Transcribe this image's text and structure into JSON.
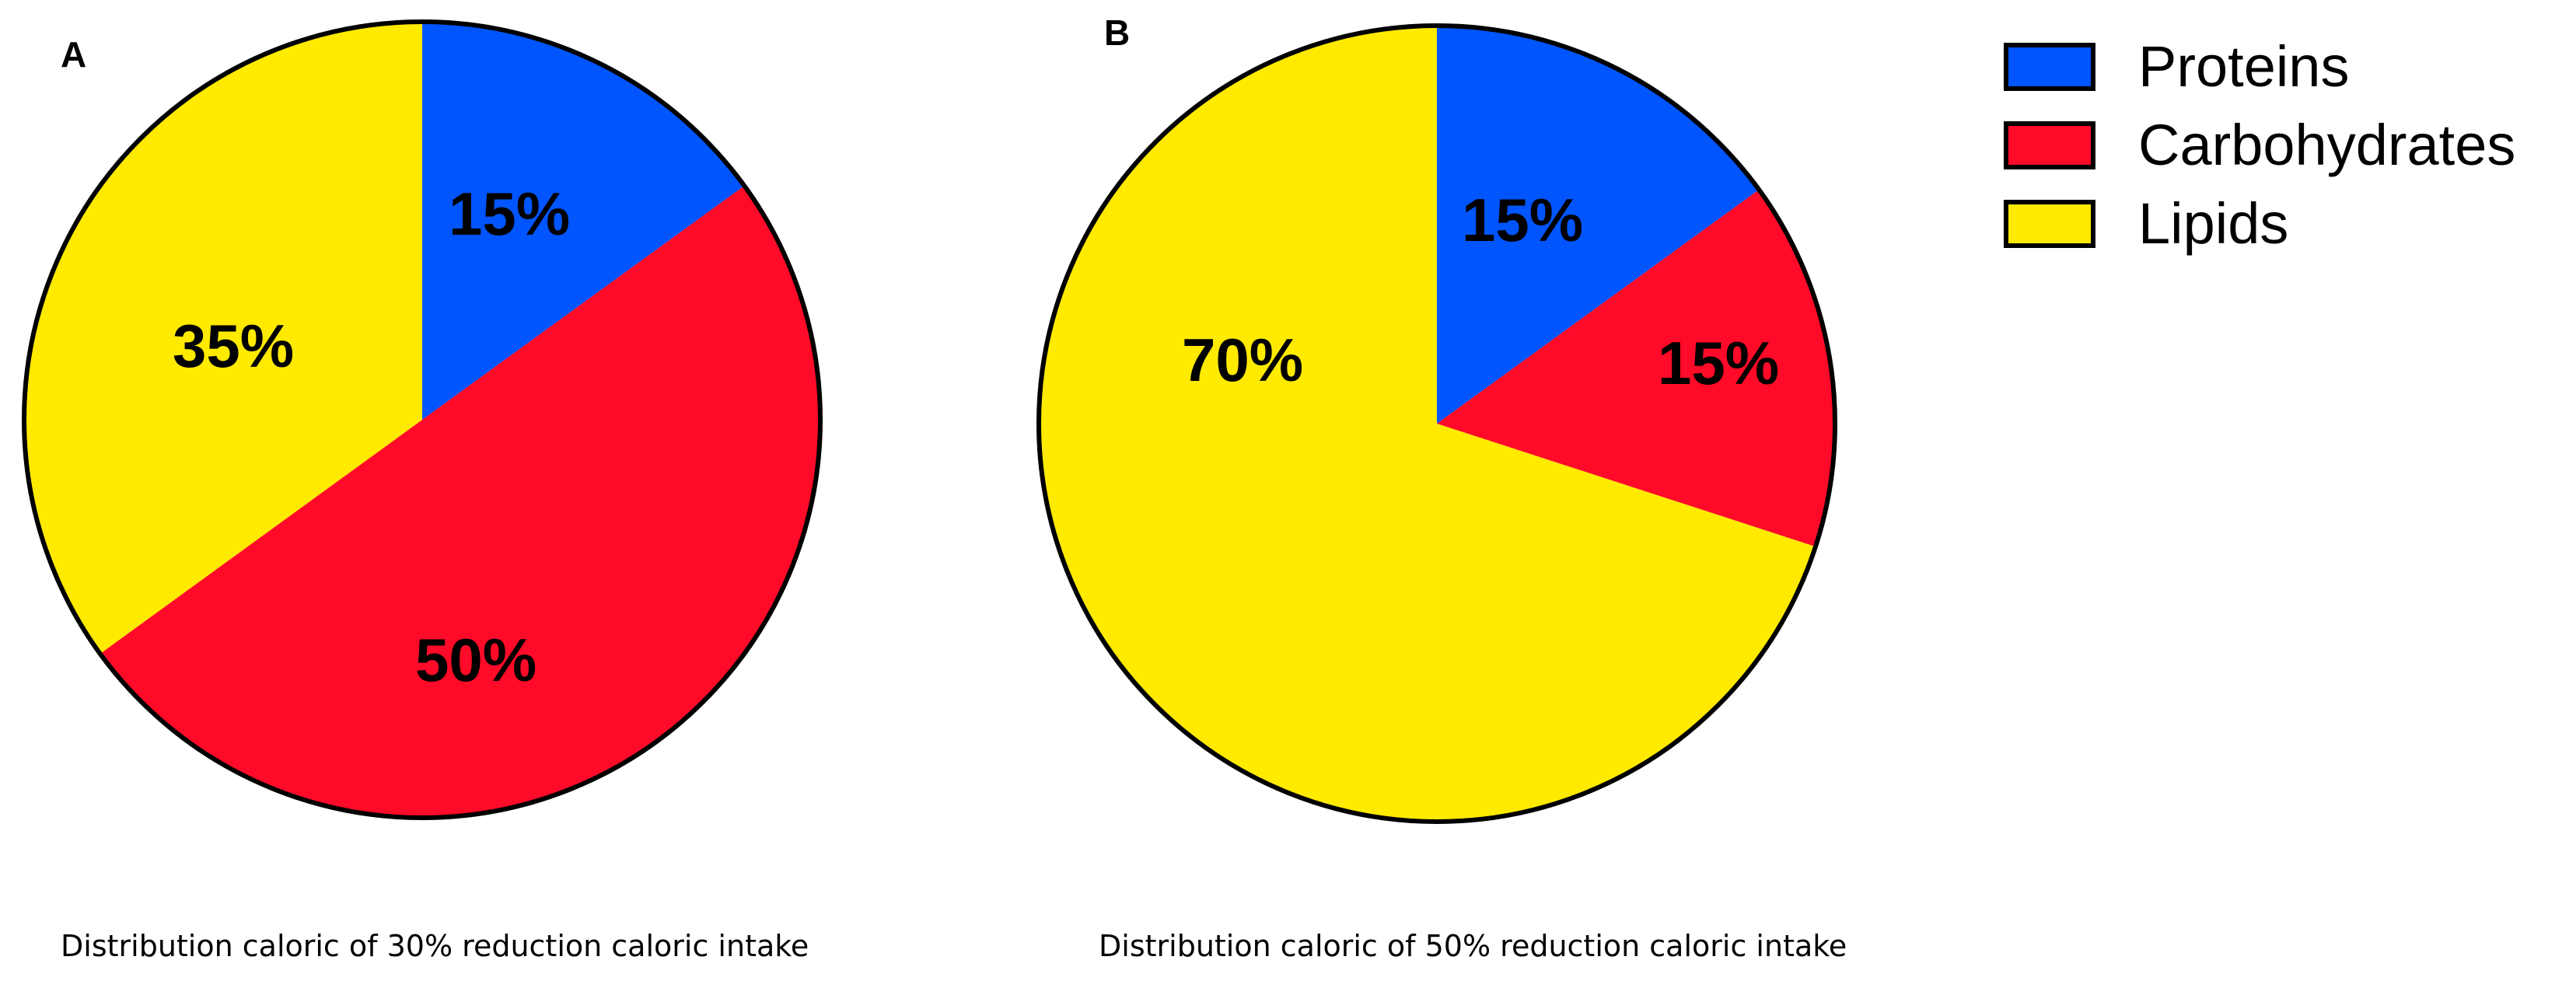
{
  "colors": {
    "proteins": "#0055ff",
    "carbohydrates": "#ff0a28",
    "lipids": "#ffea00"
  },
  "legend": {
    "items": [
      {
        "label": "Proteins",
        "color": "#0055ff"
      },
      {
        "label": "Carbohydrates",
        "color": "#ff0a28"
      },
      {
        "label": "Lipids",
        "color": "#ffea00"
      }
    ]
  },
  "chart_data": [
    {
      "type": "pie",
      "panel": "A",
      "caption": "Distribution caloric of 30% reduction caloric intake",
      "start": "12 o'clock, clockwise",
      "slices": [
        {
          "name": "Proteins",
          "value": 15,
          "label": "15%",
          "color": "#0055ff"
        },
        {
          "name": "Carbohydrates",
          "value": 50,
          "label": "50%",
          "color": "#ff0a28"
        },
        {
          "name": "Lipids",
          "value": 35,
          "label": "35%",
          "color": "#ffea00"
        }
      ]
    },
    {
      "type": "pie",
      "panel": "B",
      "caption": "Distribution caloric of 50% reduction caloric intake",
      "start": "12 o'clock, clockwise",
      "slices": [
        {
          "name": "Proteins",
          "value": 15,
          "label": "15%",
          "color": "#0055ff"
        },
        {
          "name": "Carbohydrates",
          "value": 15,
          "label": "15%",
          "color": "#ff0a28"
        },
        {
          "name": "Lipids",
          "value": 70,
          "label": "70%",
          "color": "#ffea00"
        }
      ]
    }
  ]
}
